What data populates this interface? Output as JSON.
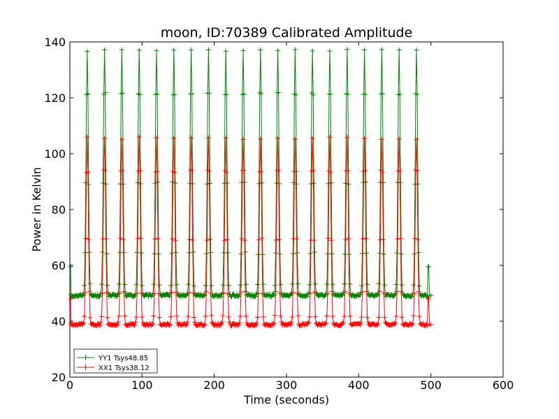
{
  "chart_data": {
    "type": "line",
    "title": "moon, ID:70389 Calibrated Amplitude",
    "xlabel": "Time (seconds)",
    "ylabel": "Power in Kelvin",
    "xlim": [
      0,
      600
    ],
    "ylim": [
      20,
      140
    ],
    "x_ticks": [
      0,
      100,
      200,
      300,
      400,
      500,
      600
    ],
    "y_ticks": [
      20,
      40,
      60,
      80,
      100,
      120,
      140
    ],
    "grid": false,
    "legend_position": "lower-left",
    "marker": "+",
    "peak_times": [
      24,
      48,
      72,
      96,
      120,
      144,
      168,
      192,
      216,
      240,
      264,
      288,
      312,
      336,
      360,
      384,
      408,
      432,
      456,
      480
    ],
    "series": [
      {
        "name": "YY1 Tsys48.85",
        "color": "#008000",
        "baseline": 49.2,
        "peak": 137,
        "start": {
          "x": 1,
          "y": 59.5
        },
        "end": {
          "x": 496,
          "y": 59.5
        },
        "x_range": [
          1,
          500
        ]
      },
      {
        "name": "XX1 Tsys38.12",
        "color": "#ff0000",
        "baseline": 38.8,
        "peak": 105.5,
        "start": {
          "x": 1,
          "y": 48
        },
        "end": {
          "x": 496,
          "y": 48
        },
        "x_range": [
          1,
          500
        ]
      }
    ]
  }
}
